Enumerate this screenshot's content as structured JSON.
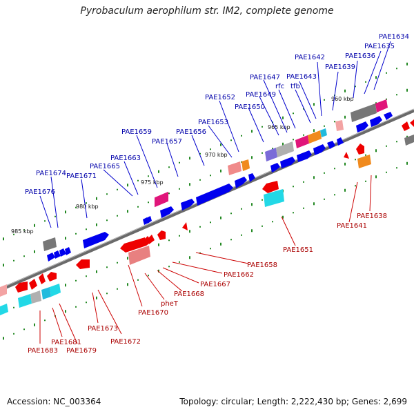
{
  "title": "Pyrobaculum aerophilum str. IM2, complete genome",
  "accession": "Accession: NC_003364",
  "summary": "Topology: circular; Length: 2,222,430 bp; Genes: 2,699",
  "kbp_labels": [
    "960 kbp",
    "965 kbp",
    "970 kbp",
    "975 kbp",
    "980 kbp",
    "985 kbp"
  ],
  "top_labels": [
    "PAE1634",
    "PAE1635",
    "PAE1636",
    "PAE1639",
    "PAE1642",
    "PAE1643",
    "tfb",
    "rfc",
    "PAE1647",
    "PAE1649",
    "PAE1650",
    "PAE1652",
    "PAE1653",
    "PAE1656",
    "PAE1657",
    "PAE1659",
    "PAE1663",
    "PAE1665",
    "PAE1671",
    "PAE1674",
    "PAE1676"
  ],
  "bottom_labels": [
    "PAE1638",
    "PAE1641",
    "PAE1651",
    "PAE1658",
    "PAE1662",
    "PAE1667",
    "PAE1668",
    "pheT",
    "PAE1670",
    "PAE1672",
    "PAE1673",
    "PAE1679",
    "PAE1681",
    "PAE1683"
  ],
  "colors": {
    "forward": "#0000ee",
    "reverse": "#ee0000",
    "top_label": "#0000aa",
    "bottom_label": "#aa0000",
    "axis": "#666666"
  }
}
